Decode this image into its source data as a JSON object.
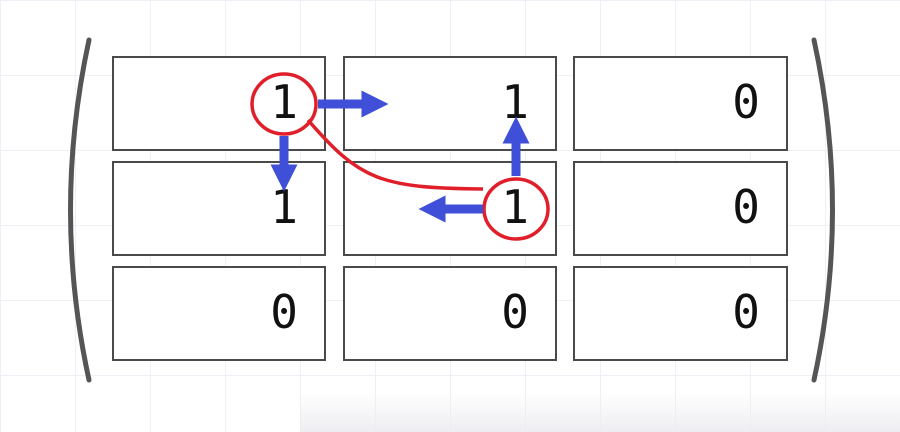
{
  "matrix": {
    "rows": [
      [
        "1",
        "1",
        "0"
      ],
      [
        "1",
        "1",
        "0"
      ],
      [
        "0",
        "0",
        "0"
      ]
    ]
  },
  "colors": {
    "arrow": "#3f4fd8",
    "highlight": "#e01f2a",
    "cell_border": "#4a4a4a",
    "parenthesis": "#555555"
  }
}
